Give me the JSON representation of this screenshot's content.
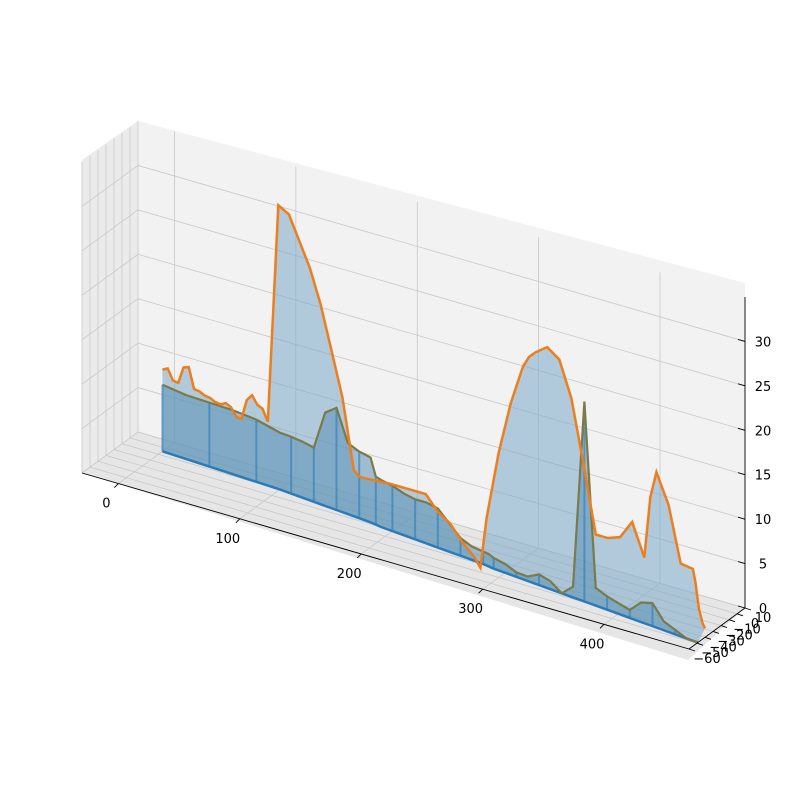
{
  "chart_data": {
    "type": "3d-line-fill",
    "title": "",
    "xlabel": "",
    "ylabel": "",
    "zlabel": "",
    "grid": true,
    "xlim": [
      -30,
      470
    ],
    "ylim": [
      -60,
      10
    ],
    "zlim": [
      0,
      35
    ],
    "x_ticks": [
      "0",
      "100",
      "200",
      "300",
      "400"
    ],
    "y_ticks": [
      "−60",
      "−50",
      "−40",
      "−30",
      "−20",
      "−10",
      "0",
      "10"
    ],
    "z_ticks": [
      "0",
      "5",
      "10",
      "15",
      "20",
      "25",
      "30"
    ],
    "colors": {
      "bottom_line": "#2b7bba",
      "top_line": "#ee7d1c",
      "fill": "#7aa9c9",
      "wall": "#f0f0f0",
      "grid": "#c8c8c8"
    },
    "series": [
      {
        "role": "top",
        "x": [
          0,
          5,
          10,
          15,
          20,
          25,
          30,
          35,
          40,
          45,
          50,
          55,
          60,
          65,
          70,
          75,
          80,
          85,
          90,
          95,
          100,
          110,
          120,
          130,
          140,
          150,
          160,
          170,
          180,
          185,
          190,
          200,
          210,
          220,
          230,
          240,
          250,
          260,
          270,
          280,
          285,
          290,
          300,
          310,
          320,
          325,
          330,
          340,
          350,
          360,
          370,
          380,
          390,
          400,
          410,
          420,
          425,
          430,
          440,
          450,
          460,
          462,
          465,
          468,
          470
        ],
        "z": [
          9.2,
          9.6,
          8.5,
          8.5,
          10.5,
          10.8,
          8.6,
          8.6,
          8.4,
          8.4,
          8.2,
          8.2,
          8.6,
          8.4,
          7.6,
          7.6,
          10.0,
          10.8,
          10.0,
          9.8,
          8.6,
          33.5,
          33.0,
          30.5,
          28.0,
          24.5,
          20.0,
          15.0,
          7.3,
          6.8,
          6.8,
          6.9,
          7.0,
          7.0,
          7.0,
          7.0,
          5.4,
          4.5,
          2.8,
          1.5,
          0.5,
          6.2,
          14.0,
          20.0,
          24.5,
          25.8,
          26.5,
          27.5,
          26.5,
          22.5,
          15.5,
          8.0,
          8.0,
          8.5,
          10.6,
          7.0,
          14.0,
          17.0,
          13.7,
          7.5,
          7.3,
          6.0,
          3.0,
          1.5,
          1.0
        ],
        "y": [
          -5,
          -6,
          -7,
          -8,
          -9,
          -10,
          -11,
          -12,
          -13,
          -14,
          -15,
          -16,
          -17,
          -18,
          -19,
          -20,
          -21,
          -22,
          -23,
          -24,
          -25,
          -27,
          -29,
          -31,
          -33,
          -35,
          -37,
          -38,
          -39,
          -40,
          -40,
          -40,
          -40,
          -40,
          -40,
          -40,
          -40,
          -40,
          -40,
          -40,
          -40,
          -40,
          -40,
          -40,
          -40,
          -40,
          -40,
          -40,
          -40,
          -40,
          -40,
          -40,
          -40,
          -40,
          -40,
          -40,
          -40,
          -40,
          -40,
          -40,
          -40,
          -40,
          -40,
          -40,
          -40
        ]
      },
      {
        "role": "middle",
        "x": [
          0,
          20,
          40,
          60,
          80,
          100,
          110,
          120,
          130,
          140,
          150,
          160,
          170,
          180,
          185,
          190,
          200,
          210,
          220,
          230,
          240,
          250,
          260,
          270,
          280,
          285,
          290,
          300,
          310,
          320,
          330,
          340,
          350,
          360,
          370,
          380,
          390,
          400,
          410,
          420,
          430,
          440,
          450,
          460,
          470
        ],
        "z": [
          7.5,
          7.2,
          7.2,
          7.2,
          7.0,
          6.4,
          6.4,
          6.3,
          6.1,
          10.5,
          11.5,
          8.0,
          7.5,
          7.3,
          5.4,
          5.3,
          5.1,
          4.7,
          4.5,
          4.6,
          4.4,
          3.2,
          2.0,
          1.5,
          1.4,
          1.4,
          1.2,
          1.0,
          0.5,
          0.5,
          1.2,
          0.9,
          0.0,
          1.2,
          22.5,
          2.0,
          1.5,
          1.2,
          0.9,
          2.2,
          2.6,
          1.0,
          0.5,
          0.0,
          0.0
        ],
        "y": [
          -5,
          -6,
          -7,
          -8,
          -9,
          -10,
          -11,
          -12,
          -13,
          -14,
          -15,
          -16,
          -17,
          -18,
          -19,
          -20,
          -21,
          -22,
          -23,
          -24,
          -25,
          -26,
          -27,
          -28,
          -29,
          -30,
          -31,
          -32,
          -33,
          -34,
          -35,
          -36,
          -37,
          -38,
          -39,
          -40,
          -41,
          -42,
          -43,
          -44,
          -45,
          -46,
          -47,
          -48,
          -49
        ]
      }
    ]
  }
}
